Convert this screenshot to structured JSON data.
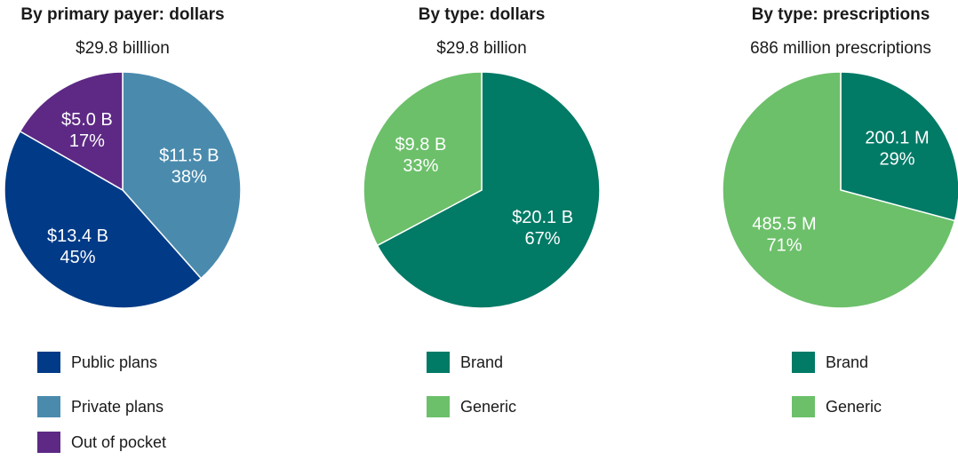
{
  "chart_data": [
    {
      "type": "pie",
      "title": "By primary payer: dollars",
      "subtitle": "$29.8 billlion",
      "categories": [
        "Private plans",
        "Public plans",
        "Out of pocket"
      ],
      "values": [
        11.5,
        13.4,
        5.0
      ],
      "data_labels": [
        {
          "amount": "$11.5 B",
          "pct": "38%"
        },
        {
          "amount": "$13.4 B",
          "pct": "45%"
        },
        {
          "amount": "$5.0 B",
          "pct": "17%"
        }
      ],
      "colors": [
        "#4a8bad",
        "#013b87",
        "#5d2985"
      ],
      "legend": {
        "placement": "bottom",
        "items": [
          {
            "label": "Public plans",
            "color": "#013b87"
          },
          {
            "label": "Private plans",
            "color": "#4a8bad"
          },
          {
            "label": "Out of pocket",
            "color": "#5d2985"
          }
        ]
      }
    },
    {
      "type": "pie",
      "title": "By type: dollars",
      "subtitle": "$29.8 billion",
      "categories": [
        "Brand",
        "Generic"
      ],
      "values": [
        20.1,
        9.8
      ],
      "data_labels": [
        {
          "amount": "$20.1 B",
          "pct": "67%"
        },
        {
          "amount": "$9.8 B",
          "pct": "33%"
        }
      ],
      "colors": [
        "#017a66",
        "#6cc06a"
      ],
      "legend": {
        "placement": "bottom",
        "items": [
          {
            "label": "Brand",
            "color": "#017a66"
          },
          {
            "label": "Generic",
            "color": "#6cc06a"
          }
        ]
      }
    },
    {
      "type": "pie",
      "title": "By type: prescriptions",
      "subtitle": "686 million prescriptions",
      "categories": [
        "Brand",
        "Generic"
      ],
      "values": [
        200.1,
        485.5
      ],
      "data_labels": [
        {
          "amount": "200.1 M",
          "pct": "29%"
        },
        {
          "amount": "485.5 M",
          "pct": "71%"
        }
      ],
      "colors": [
        "#017a66",
        "#6cc06a"
      ],
      "legend": {
        "placement": "bottom",
        "items": [
          {
            "label": "Brand",
            "color": "#017a66"
          },
          {
            "label": "Generic",
            "color": "#6cc06a"
          }
        ]
      }
    }
  ]
}
